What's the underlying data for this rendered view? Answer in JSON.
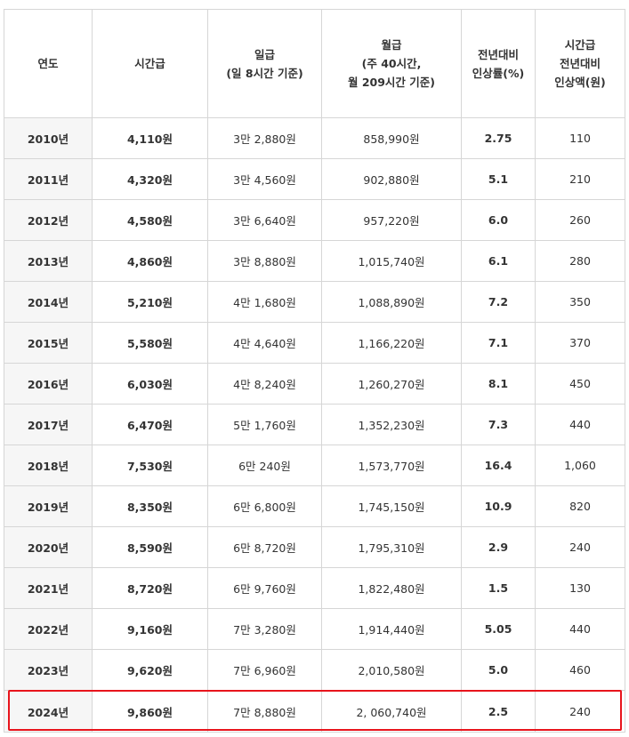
{
  "headers": [
    {
      "lines": [
        "연도"
      ]
    },
    {
      "lines": [
        "시간급"
      ]
    },
    {
      "lines": [
        "일급",
        "(일 8시간 기준)"
      ]
    },
    {
      "lines": [
        "월급",
        "(주 40시간,",
        "월 209시간 기준)"
      ]
    },
    {
      "lines": [
        "전년대비",
        "인상률(%)"
      ]
    },
    {
      "lines": [
        "시간급",
        "전년대비",
        "인상액(원)"
      ]
    }
  ],
  "rows": [
    {
      "year": "2010년",
      "hourly": "4,110원",
      "daily": "3만 2,880원",
      "monthly": "858,990원",
      "rate": "2.75",
      "increase": "110"
    },
    {
      "year": "2011년",
      "hourly": "4,320원",
      "daily": "3만 4,560원",
      "monthly": "902,880원",
      "rate": "5.1",
      "increase": "210"
    },
    {
      "year": "2012년",
      "hourly": "4,580원",
      "daily": "3만 6,640원",
      "monthly": "957,220원",
      "rate": "6.0",
      "increase": "260"
    },
    {
      "year": "2013년",
      "hourly": "4,860원",
      "daily": "3만 8,880원",
      "monthly": "1,015,740원",
      "rate": "6.1",
      "increase": "280"
    },
    {
      "year": "2014년",
      "hourly": "5,210원",
      "daily": "4만 1,680원",
      "monthly": "1,088,890원",
      "rate": "7.2",
      "increase": "350"
    },
    {
      "year": "2015년",
      "hourly": "5,580원",
      "daily": "4만 4,640원",
      "monthly": "1,166,220원",
      "rate": "7.1",
      "increase": "370"
    },
    {
      "year": "2016년",
      "hourly": "6,030원",
      "daily": "4만 8,240원",
      "monthly": "1,260,270원",
      "rate": "8.1",
      "increase": "450"
    },
    {
      "year": "2017년",
      "hourly": "6,470원",
      "daily": "5만 1,760원",
      "monthly": "1,352,230원",
      "rate": "7.3",
      "increase": "440"
    },
    {
      "year": "2018년",
      "hourly": "7,530원",
      "daily": "6만 240원",
      "monthly": "1,573,770원",
      "rate": "16.4",
      "increase": "1,060"
    },
    {
      "year": "2019년",
      "hourly": "8,350원",
      "daily": "6만 6,800원",
      "monthly": "1,745,150원",
      "rate": "10.9",
      "increase": "820"
    },
    {
      "year": "2020년",
      "hourly": "8,590원",
      "daily": "6만 8,720원",
      "monthly": "1,795,310원",
      "rate": "2.9",
      "increase": "240"
    },
    {
      "year": "2021년",
      "hourly": "8,720원",
      "daily": "6만 9,760원",
      "monthly": "1,822,480원",
      "rate": "1.5",
      "increase": "130"
    },
    {
      "year": "2022년",
      "hourly": "9,160원",
      "daily": "7만 3,280원",
      "monthly": "1,914,440원",
      "rate": "5.05",
      "increase": "440"
    },
    {
      "year": "2023년",
      "hourly": "9,620원",
      "daily": "7만 6,960원",
      "monthly": "2,010,580원",
      "rate": "5.0",
      "increase": "460"
    },
    {
      "year": "2024년",
      "hourly": "9,860원",
      "daily": "7만 8,880원",
      "monthly": "2, 060,740원",
      "rate": "2.5",
      "increase": "240"
    }
  ],
  "highlight": {
    "row_year": "2024년",
    "color": "#e8141c"
  },
  "colors": {
    "text": "#333333",
    "border": "#d6d6d6",
    "year_bg": "#f6f6f6"
  }
}
